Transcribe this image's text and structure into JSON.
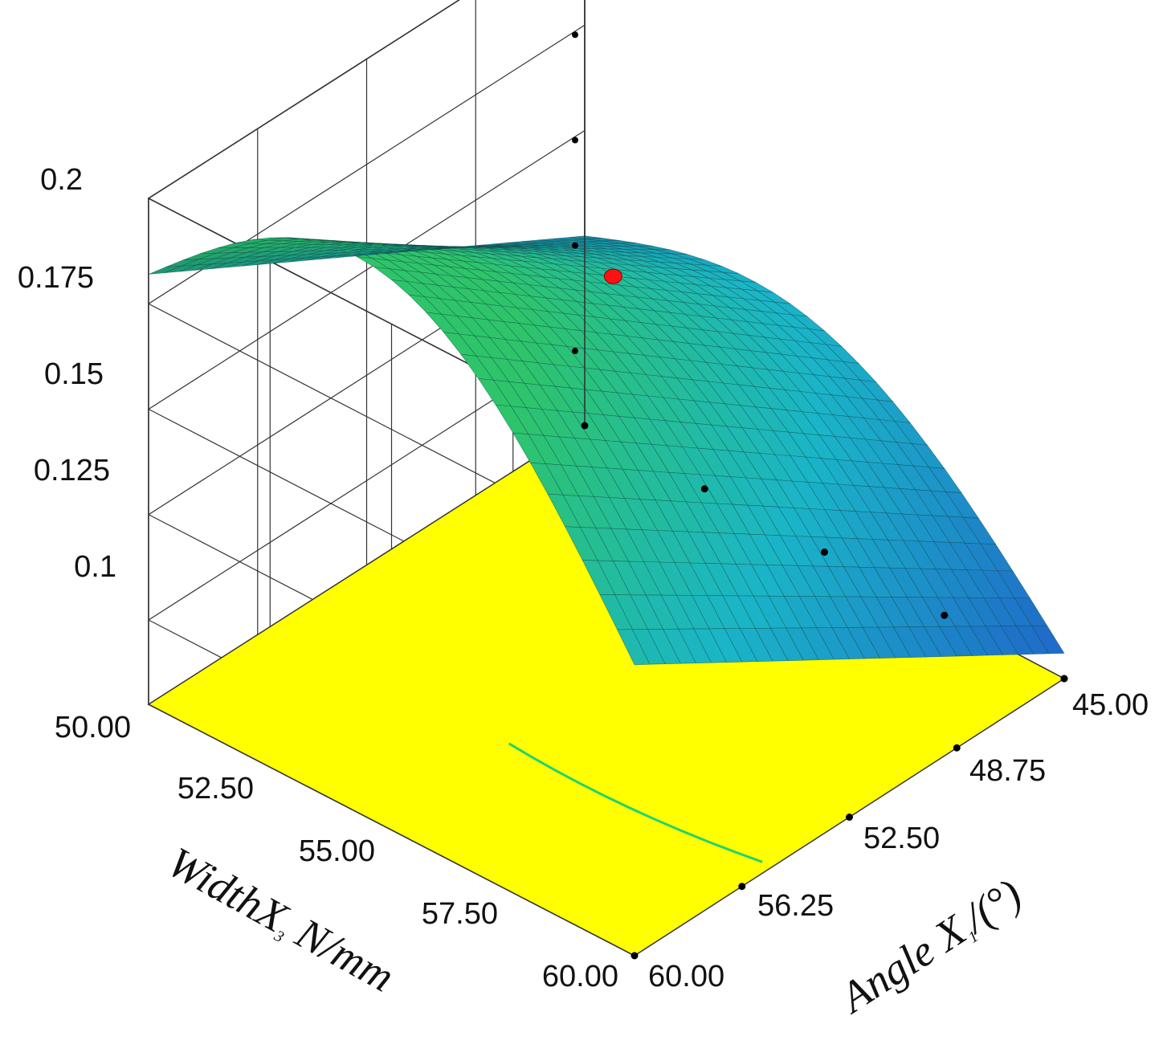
{
  "chart_data": {
    "type": "surface3d",
    "title": "",
    "x_axis": {
      "label_main": "Angle X",
      "label_sub": "1",
      "label_tail": "/(°)",
      "ticks": [
        "45.00",
        "48.75",
        "52.50",
        "56.25",
        "60.00"
      ],
      "range": [
        45,
        60
      ]
    },
    "y_axis": {
      "label_main": "WidthX",
      "label_sub": "3",
      "label_tail": " N/mm",
      "ticks": [
        "50.00",
        "52.50",
        "55.00",
        "57.50",
        "60.00"
      ],
      "range": [
        50,
        60
      ]
    },
    "z_axis": {
      "label": "",
      "ticks": [
        "0.1",
        "0.125",
        "0.15",
        "0.175",
        "0.2"
      ],
      "range": [
        0.08,
        0.2
      ]
    },
    "surface_corners": {
      "angle45_width50": 0.182,
      "angle60_width50": 0.125,
      "angle45_width60": 0.149,
      "angle60_width60": 0.086
    },
    "surface_saddle_peak": 0.182,
    "design_point": {
      "angle": 58.5,
      "width": 51.5,
      "value": 0.131
    },
    "colors": {
      "floor": "#ffff00",
      "surface_low": "#1f66c8",
      "surface_mid": "#1ab5c8",
      "surface_high": "#2ec46a",
      "contour": "#21d46b",
      "point": "#ff1111",
      "grid": "#333333"
    },
    "grid": true
  }
}
